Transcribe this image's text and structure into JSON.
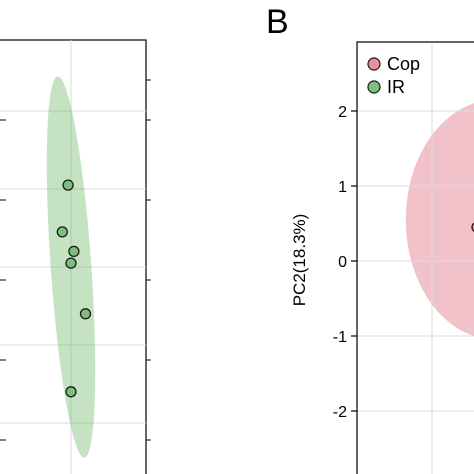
{
  "chart_data": [
    {
      "panel": "",
      "type": "scatter",
      "xlabel": "",
      "ylabel": "",
      "grid": true,
      "series": [
        {
          "color": "#7fbf7b",
          "points": [
            [
              0.45,
              1.05
            ],
            [
              0.35,
              0.45
            ],
            [
              0.55,
              0.2
            ],
            [
              0.5,
              0.05
            ],
            [
              0.75,
              -0.6
            ],
            [
              0.5,
              -1.6
            ]
          ],
          "ellipse": {
            "cx": 0.5,
            "cy": 0.0,
            "rx": 0.7,
            "ry": 2.45,
            "angle_deg": -4
          }
        }
      ]
    },
    {
      "panel": "B",
      "type": "scatter",
      "xlabel": "",
      "ylabel": "PC2(18.3%)",
      "ylim": [
        -2.8,
        2.8
      ],
      "yticks": [
        "2",
        "1",
        "0",
        "-1",
        "-2"
      ],
      "grid": true,
      "legend_position": "top-left",
      "series": [
        {
          "name": "Cop",
          "color": "#e8909e",
          "points": [
            [
              0.2,
              0.45
            ]
          ],
          "ellipse": {
            "cx": 0.85,
            "cy": 0.55,
            "rx": 1.2,
            "ry": 1.6,
            "angle_deg": 0
          }
        },
        {
          "name": "IR",
          "color": "#7fbf7b",
          "points": []
        }
      ]
    }
  ]
}
